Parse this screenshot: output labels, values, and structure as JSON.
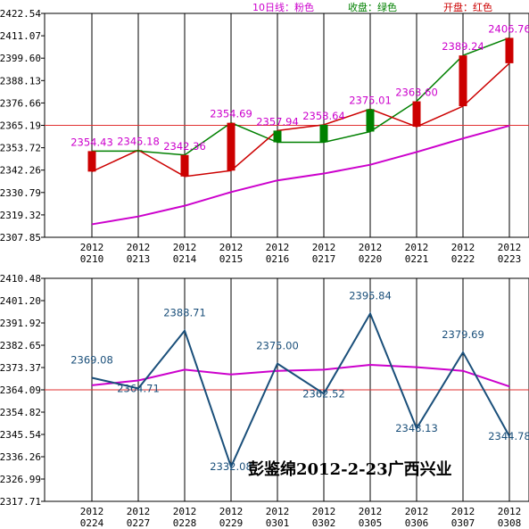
{
  "chart_data": [
    {
      "type": "candlestick",
      "legend": [
        {
          "label": "10日线：粉色",
          "color": "#cc00cc"
        },
        {
          "label": "收盘：绿色",
          "color": "#008000"
        },
        {
          "label": "开盘：红色",
          "color": "#cc0000"
        }
      ],
      "yticks": [
        "2422.54",
        "2411.07",
        "2399.60",
        "2388.13",
        "2376.66",
        "2365.19",
        "2353.72",
        "2342.26",
        "2330.79",
        "2319.32",
        "2307.85"
      ],
      "ylim": [
        2307.85,
        2422.54
      ],
      "reference_line": 2365.19,
      "categories": [
        [
          "2012",
          "0210"
        ],
        [
          "2012",
          "0213"
        ],
        [
          "2012",
          "0214"
        ],
        [
          "2012",
          "0215"
        ],
        [
          "2012",
          "0216"
        ],
        [
          "2012",
          "0217"
        ],
        [
          "2012",
          "0220"
        ],
        [
          "2012",
          "0221"
        ],
        [
          "2012",
          "0222"
        ],
        [
          "2012",
          "0223"
        ]
      ],
      "labels": [
        "2354.43",
        "2345.18",
        "2342.36",
        "2354.69",
        "2357.94",
        "2358.64",
        "2375.01",
        "2363.60",
        "2389.24",
        "2406.76"
      ],
      "open": [
        2341.5,
        2352.5,
        2339.0,
        2342.0,
        2362.5,
        2365.5,
        2373.5,
        2364.5,
        2375.0,
        2397.0
      ],
      "close": [
        2352.0,
        2352.0,
        2350.0,
        2366.5,
        2356.5,
        2356.5,
        2362.0,
        2377.5,
        2401.0,
        2410.0
      ],
      "ma10": [
        2314.5,
        2318.5,
        2324.0,
        2331.0,
        2337.0,
        2340.5,
        2345.0,
        2351.5,
        2358.5,
        2365.0
      ]
    },
    {
      "type": "line",
      "yticks": [
        "2410.48",
        "2401.20",
        "2391.92",
        "2382.65",
        "2373.37",
        "2364.09",
        "2354.82",
        "2345.54",
        "2336.26",
        "2326.99",
        "2317.71"
      ],
      "ylim": [
        2317.71,
        2410.48
      ],
      "reference_line": 2364.09,
      "categories": [
        [
          "2012",
          "0224"
        ],
        [
          "2012",
          "0227"
        ],
        [
          "2012",
          "0228"
        ],
        [
          "2012",
          "0229"
        ],
        [
          "2012",
          "0301"
        ],
        [
          "2012",
          "0302"
        ],
        [
          "2012",
          "0305"
        ],
        [
          "2012",
          "0306"
        ],
        [
          "2012",
          "0307"
        ],
        [
          "2012",
          "0308"
        ]
      ],
      "series": [
        {
          "color": "#1a4f7a",
          "values": [
            2369.1,
            2364.7,
            2388.7,
            2332.1,
            2375.0,
            2362.5,
            2395.8,
            2348.1,
            2379.7,
            2344.8
          ]
        },
        {
          "color": "#cc00cc",
          "values": [
            2366.0,
            2368.0,
            2372.5,
            2370.5,
            2372.0,
            2372.5,
            2374.5,
            2373.5,
            2372.0,
            2365.5
          ]
        }
      ],
      "labels": [
        "2369.08",
        "2364.71",
        "2388.71",
        "2332.08",
        "2375.00",
        "2362.52",
        "2395.84",
        "2348.13",
        "2379.69",
        "2344.78"
      ],
      "label_color": "#1a4f7a"
    }
  ],
  "caption": "彭鉴绵2012-2-23广西兴业"
}
